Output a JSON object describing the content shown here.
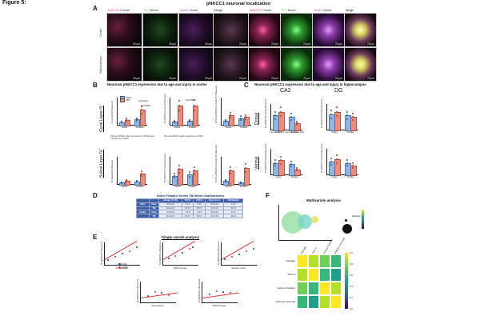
{
  "figure": {
    "label": "Figure 5:",
    "panels": {
      "A": "A",
      "B": "B",
      "C": "C",
      "D": "D",
      "E": "E",
      "F": "F"
    }
  },
  "panel_a": {
    "title": "pNKCC1 neuronal localization",
    "column_headers": [
      {
        "t1": "pNKCC1",
        "t2": " / Nuclei",
        "c1": "#e0458e"
      },
      {
        "t1": "PV",
        "t2": " / Nuclei",
        "c1": "#3fbf3f"
      },
      {
        "t1": "NeuN",
        "t2": " / Nuclei",
        "c1": "#c04fd6"
      },
      {
        "t1": "Merge",
        "t2": "",
        "c1": "#111111"
      },
      {
        "t1": "pNKCC1",
        "t2": " / Nuclei",
        "c1": "#e0458e"
      },
      {
        "t1": "PV",
        "t2": " / Nuclei",
        "c1": "#3fbf3f"
      },
      {
        "t1": "NeuN",
        "t2": " / Nuclei",
        "c1": "#c04fd6"
      },
      {
        "t1": "Merge",
        "t2": "",
        "c1": "#111111"
      }
    ],
    "row_labels": [
      "Cortex",
      "Hippocampus"
    ],
    "scale_bars": [
      "25 µm",
      "25 µm",
      "25 µm",
      "25 µm",
      "25 µm",
      "25 µm",
      "25 µm",
      "25 µm"
    ]
  },
  "panel_b": {
    "title": "Neuronal pNKCC1 expression due to age and injury in cortex",
    "row_labels": [
      "Gyral Layer IV",
      "Sulcal Layer IV"
    ],
    "legend": [
      "Sham",
      "TBI"
    ],
    "x_ticks": [
      "Infant",
      "Toddler"
    ],
    "y_labels": [
      "% Apoptotic Neurons",
      "% pNKCC1+/Total Neurons",
      "% PV+pNKCC1+/Total PV Neurons"
    ],
    "significance": [
      "p=0.0112",
      "p=0.0022",
      "p=0.0001"
    ],
    "stats_note_1": "Two-way ANOVA: effect of treatment p=0.0023, age x treatment p=0.0007",
    "stats_note_2": "Two-way ANOVA: effect of treatment p=0.0017"
  },
  "panel_c": {
    "title": "Neuronal pNKCC1 expression due to age and injury in hippocampus",
    "col_labels": [
      "CA2",
      "DG"
    ],
    "row_labels": [
      "Dorsal",
      "Ventral"
    ],
    "x_ticks": [
      "Infant",
      "Toddler"
    ],
    "y_labels": [
      "% pNKCC1+/Total Neurons",
      "% pNKCC1+/Total Neurons"
    ],
    "stats_note": "Two-way ANOVA: effect of age p=0.0124"
  },
  "panel_d": {
    "title": "Swine Pediatric Severe TBI Model Characteristics",
    "header": [
      "",
      "",
      "Damage (% TBI)",
      "SSH %",
      "NOS %",
      "Neuro Score",
      "TAW Nadmin"
    ],
    "rows": [
      [
        "Infant",
        "Sham",
        "0.0 ± 0.0",
        "0 ± 0",
        "0 ± 0",
        "0.0 ± 0.0",
        "0 ± 0"
      ],
      [
        "",
        "TBI",
        "14.3 ± 2.1",
        "41 ± 6",
        "29 ± 5",
        "3.4 ± 0.6",
        "12 ± 3"
      ],
      [
        "Toddler",
        "Sham",
        "0.0 ± 0.0",
        "0 ± 0",
        "0 ± 0",
        "0.0 ± 0.0",
        "0 ± 0"
      ],
      [
        "",
        "TBI",
        "11.8 ± 1.9",
        "35 ± 7",
        "24 ± 4",
        "2.9 ± 0.5",
        "10 ± 2"
      ]
    ]
  },
  "panel_e": {
    "title": "Single variate analysis",
    "legend": [
      "Infant",
      "Toddler"
    ],
    "x_labels": [
      "% Damage",
      "SSH % Area",
      "Seizure (min)",
      "Neuroscore",
      "SSH % Area"
    ],
    "y_label": "% pNKCC1+/Neurons"
  },
  "panel_f": {
    "title": "Multivariate analysis",
    "bubble_legend_title": "Damage %",
    "heatmap": {
      "row_labels": [
        "Damage",
        "SSH %",
        "Seizure Duration",
        "pNKCC1 neuronal"
      ],
      "col_labels": [
        "Damage",
        "SSH %",
        "Seizure Duration",
        "pNKCC1 neuronal"
      ],
      "colorbar_ticks": [
        "1.0",
        "0.8",
        "0.6",
        "0.4",
        "0.2",
        "0.0"
      ],
      "colors": [
        "#fde725",
        "#b5de2b",
        "#6ece58",
        "#35b779",
        "#1f9e89",
        "#26828e",
        "#31688e",
        "#3e4989"
      ]
    }
  },
  "colors": {
    "sham": "#8fb6e8",
    "tbi": "#f08a7a",
    "infant": "#1f3c88",
    "toddler": "#e03a3a"
  }
}
